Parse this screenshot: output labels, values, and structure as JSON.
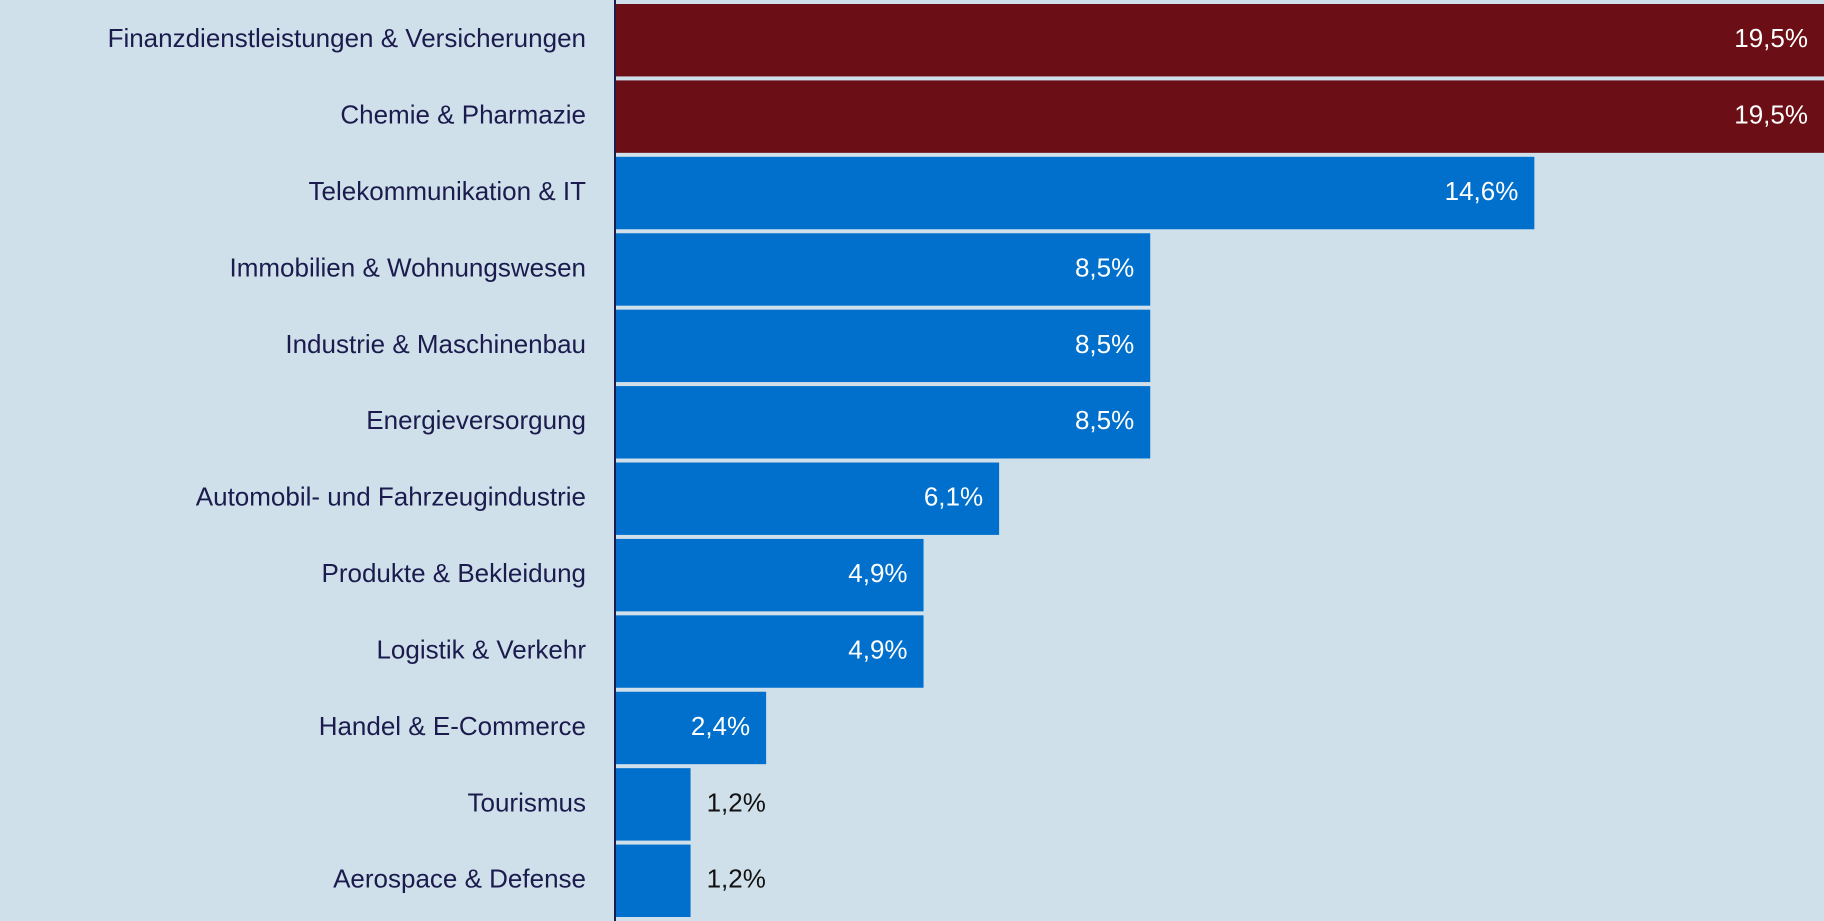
{
  "chart_data": {
    "type": "barh",
    "categories": [
      "Finanzdienstleistungen & Versicherungen",
      "Chemie & Pharmazie",
      "Telekommunikation & IT",
      "Immobilien & Wohnungswesen",
      "Industrie & Maschinenbau",
      "Energieversorgung",
      "Automobil- und Fahrzeugindustrie",
      "Produkte & Bekleidung",
      "Logistik & Verkehr",
      "Handel & E-Commerce",
      "Tourismus",
      "Aerospace & Defense"
    ],
    "values": [
      19.5,
      19.5,
      14.6,
      8.5,
      8.5,
      8.5,
      6.1,
      4.9,
      4.9,
      2.4,
      1.2,
      1.2
    ],
    "value_labels": [
      "19,5%",
      "19,5%",
      "14,6%",
      "8,5%",
      "8,5%",
      "8,5%",
      "6,1%",
      "4,9%",
      "4,9%",
      "2,4%",
      "1,2%",
      "1,2%"
    ],
    "colors": [
      "#6b0e16",
      "#6b0e16",
      "#0070cc",
      "#0070cc",
      "#0070cc",
      "#0070cc",
      "#0070cc",
      "#0070cc",
      "#0070cc",
      "#0070cc",
      "#0070cc",
      "#0070cc"
    ],
    "xlim": [
      0,
      19.2
    ]
  }
}
